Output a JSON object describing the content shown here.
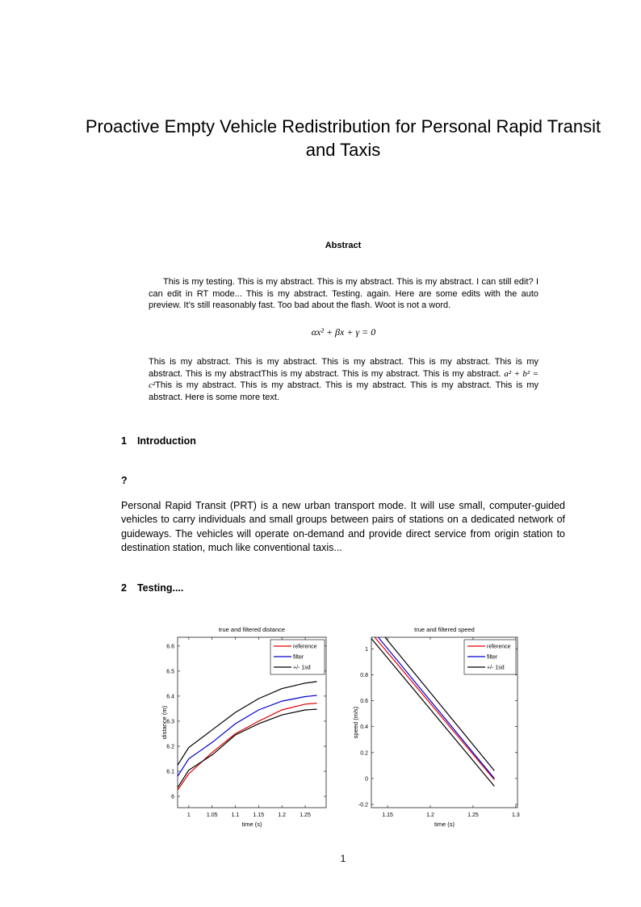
{
  "title": "Proactive Empty Vehicle Redistribution for Personal Rapid Transit and Taxis",
  "abstract": {
    "heading": "Abstract",
    "para1": "This is my testing. This is my abstract. This is my abstract. This is my abstract. I can still edit? I can edit in RT mode... This is my abstract. Testing. again. Here are some edits with the auto preview. It’s still reasonably fast. Too bad about the flash. Woot is not a word.",
    "equation": "αx² + βx + γ = 0",
    "para2_before": "This is my abstract. This is my abstract. This is my abstract. This is my abstract. This is my abstract. This is my abstractThis is my abstract. This is my abstract. This is my abstract. ",
    "inline_equation": "a² + b² = c²",
    "para2_after": "This is my abstract. This is my abstract. This is my abstract. This is my abstract. This is my abstract. Here is some more text."
  },
  "sections": [
    {
      "number": "1",
      "title": "Introduction"
    },
    {
      "number": "2",
      "title": "Testing...."
    }
  ],
  "subheading": "?",
  "intro_paragraph": "Personal Rapid Transit (PRT) is a new urban transport mode.  It will use small, computer-guided vehicles to carry individuals and small groups between pairs of stations on a dedicated network of guideways.  The vehicles will operate on-demand and provide direct service from origin station to destination station, much like conventional taxis...",
  "page_number": "1",
  "chart_data": [
    {
      "type": "line",
      "title": "true and filtered distance",
      "xlabel": "time (s)",
      "ylabel": "distance (m)",
      "xlim": [
        0.976,
        1.295
      ],
      "ylim": [
        5.955,
        6.635
      ],
      "xticks": [
        "1",
        "1.05",
        "1.1",
        "1.15",
        "1.2",
        "1.25"
      ],
      "yticks": [
        "6",
        "6.1",
        "6.2",
        "6.3",
        "6.4",
        "6.5",
        "6.6"
      ],
      "legend_position": "top-right",
      "grid": false,
      "x": [
        0.976,
        1.0,
        1.05,
        1.1,
        1.15,
        1.2,
        1.25,
        1.275
      ],
      "series": [
        {
          "name": "reference",
          "color": "#e00000",
          "values": [
            6.025,
            6.09,
            6.175,
            6.25,
            6.3,
            6.345,
            6.368,
            6.372
          ]
        },
        {
          "name": "filter",
          "color": "#0000d0",
          "values": [
            6.08,
            6.15,
            6.215,
            6.29,
            6.345,
            6.38,
            6.398,
            6.403
          ]
        },
        {
          "name": "+/- 1sd",
          "color": "#000000",
          "values": [
            6.125,
            6.195,
            6.265,
            6.335,
            6.39,
            6.43,
            6.452,
            6.458
          ]
        },
        {
          "name": "",
          "color": "#000000",
          "values": [
            6.035,
            6.105,
            6.165,
            6.245,
            6.29,
            6.325,
            6.345,
            6.348
          ]
        }
      ]
    },
    {
      "type": "line",
      "title": "true and filtered speed",
      "xlabel": "time (s)",
      "ylabel": "speed (m/s)",
      "xlim": [
        1.131,
        1.302
      ],
      "ylim": [
        -0.225,
        1.09
      ],
      "xticks": [
        "1.15",
        "1.2",
        "1.25",
        "1.3"
      ],
      "yticks": [
        "-0.2",
        "0",
        "0.2",
        "0.4",
        "0.6",
        "0.8",
        "1"
      ],
      "legend_position": "top-right",
      "grid": false,
      "series": [
        {
          "name": "reference",
          "color": "#e00000",
          "x": [
            1.135,
            1.275
          ],
          "values": [
            1.09,
            -0.01
          ]
        },
        {
          "name": "filter",
          "color": "#0000d0",
          "x": [
            1.139,
            1.275
          ],
          "values": [
            1.09,
            0.0
          ]
        },
        {
          "name": "+/- 1sd",
          "color": "#000000",
          "x": [
            1.147,
            1.275
          ],
          "values": [
            1.09,
            0.06
          ]
        },
        {
          "name": "",
          "color": "#000000",
          "x": [
            1.131,
            1.275
          ],
          "values": [
            1.08,
            -0.06
          ]
        }
      ]
    }
  ]
}
